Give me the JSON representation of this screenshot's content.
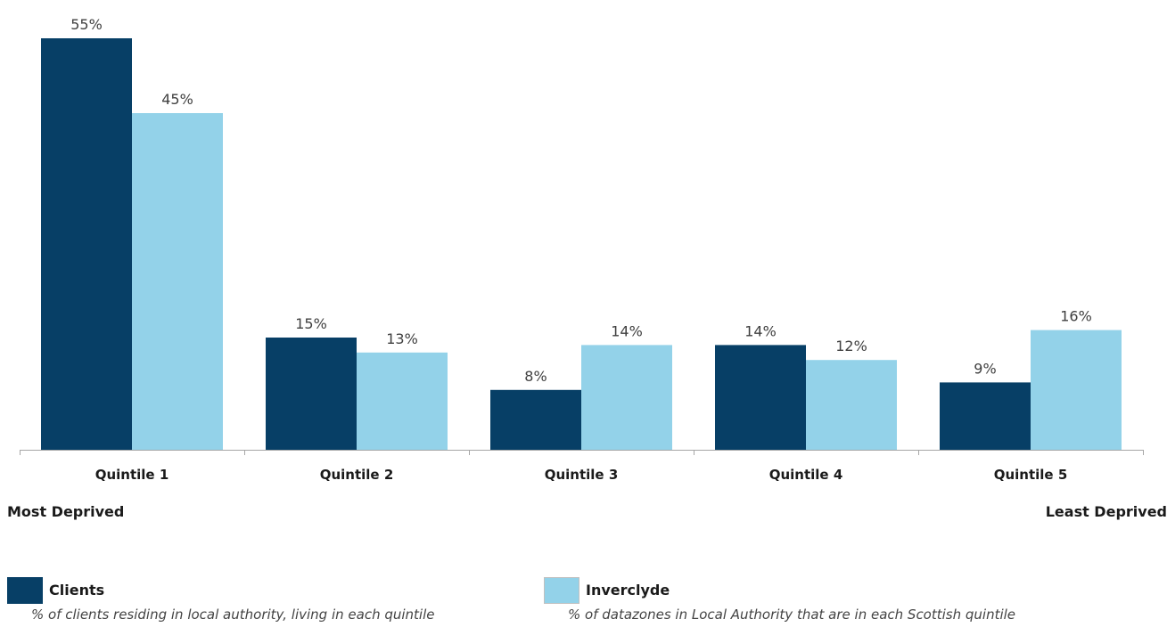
{
  "chart_data": {
    "type": "bar",
    "categories": [
      "Quintile 1",
      "Quintile 2",
      "Quintile 3",
      "Quintile 4",
      "Quintile 5"
    ],
    "series": [
      {
        "name": "Clients",
        "values": [
          55,
          15,
          8,
          14,
          9
        ],
        "labels": [
          "55%",
          "15%",
          "8%",
          "14%",
          "9%"
        ],
        "color": "#073f66"
      },
      {
        "name": "Inverclyde",
        "values": [
          45,
          13,
          14,
          12,
          16
        ],
        "labels": [
          "45%",
          "13%",
          "14%",
          "12%",
          "16%"
        ],
        "color": "#93d2e9"
      }
    ],
    "ylim": [
      0,
      55
    ],
    "grid": false,
    "legend": "bottom",
    "axis_end_labels": {
      "left": "Most Deprived",
      "right": "Least Deprived"
    }
  },
  "legend": [
    {
      "name": "Clients",
      "description": "% of clients residing in local authority, living in each quintile",
      "color": "#073f66"
    },
    {
      "name": "Inverclyde",
      "description": "% of datazones in Local Authority that are in each Scottish quintile",
      "color": "#93d2e9"
    }
  ]
}
